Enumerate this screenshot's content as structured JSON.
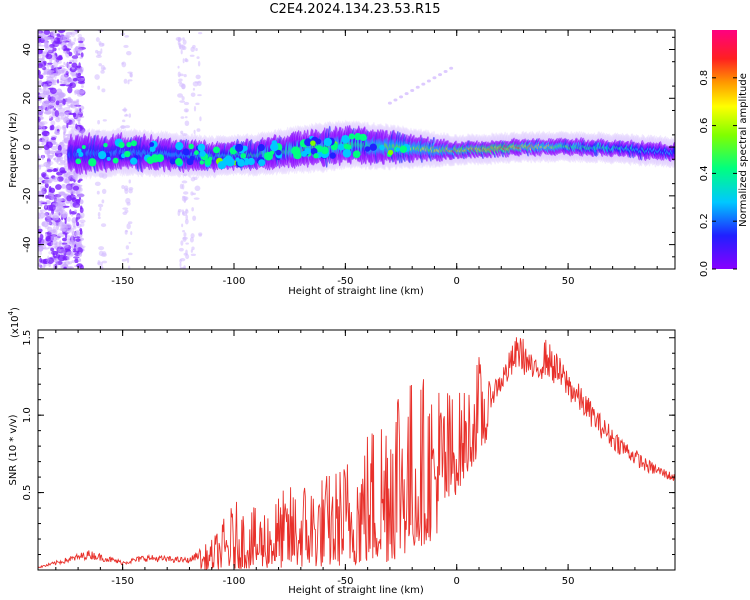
{
  "page": {
    "title": "C2E4.2024.134.23.53.R15"
  },
  "colors": {
    "snr_line": "#e8302a",
    "spectro_low": "#8b00ff",
    "spectro_mid": "#00e5ff",
    "spectro_high": "#ff1e3c",
    "axis": "#000000"
  },
  "chart_data": [
    {
      "type": "heatmap",
      "title": "C2E4.2024.134.23.53.R15",
      "xlabel": "Height of straight line (km)",
      "ylabel": "Frequency (Hz)",
      "xlim": [
        -188,
        98
      ],
      "ylim": [
        -50,
        48
      ],
      "xticks": [
        -150,
        -100,
        -50,
        0,
        50
      ],
      "yticks": [
        40,
        20,
        0,
        -20,
        -40
      ],
      "colorbar": {
        "label": "Normalized spectral amplitude",
        "range": [
          0,
          1
        ],
        "ticks": [
          "0.0",
          "0.2",
          "0.4",
          "0.6",
          "0.8"
        ],
        "colormap": "hsv-like (purple-blue-cyan-green-yellow-orange-red-magenta)"
      },
      "ridge_center_hz": [
        {
          "x": -170,
          "y": -3
        },
        {
          "x": -150,
          "y": -2
        },
        {
          "x": -130,
          "y": -3
        },
        {
          "x": -110,
          "y": -4
        },
        {
          "x": -90,
          "y": -3
        },
        {
          "x": -70,
          "y": -1
        },
        {
          "x": -50,
          "y": 1
        },
        {
          "x": -30,
          "y": 0
        },
        {
          "x": -10,
          "y": -1
        },
        {
          "x": 10,
          "y": -1
        },
        {
          "x": 30,
          "y": 0
        },
        {
          "x": 60,
          "y": 0
        },
        {
          "x": 95,
          "y": -2
        }
      ],
      "ridge_halfwidth_hz": [
        {
          "x": -170,
          "y": 7
        },
        {
          "x": -130,
          "y": 6
        },
        {
          "x": -100,
          "y": 5
        },
        {
          "x": -60,
          "y": 7
        },
        {
          "x": -30,
          "y": 6
        },
        {
          "x": 0,
          "y": 3
        },
        {
          "x": 50,
          "y": 3
        },
        {
          "x": 95,
          "y": 3
        }
      ],
      "ridge_amplitude": [
        {
          "x": -170,
          "y": 0.3
        },
        {
          "x": -120,
          "y": 0.4
        },
        {
          "x": -80,
          "y": 0.5
        },
        {
          "x": -40,
          "y": 0.55
        },
        {
          "x": -10,
          "y": 0.75
        },
        {
          "x": 20,
          "y": 0.95
        },
        {
          "x": 50,
          "y": 0.55
        },
        {
          "x": 95,
          "y": 0.35
        }
      ]
    },
    {
      "type": "line",
      "xlabel": "Height of straight line (km)",
      "ylabel": "SNR (10 * v/v)",
      "multiplier_label": "(x10",
      "multiplier_exp": "4",
      "xlim": [
        -188,
        98
      ],
      "ylim": [
        0,
        1.55
      ],
      "xticks": [
        -150,
        -100,
        -50,
        0,
        50
      ],
      "yticks": [
        "0.5",
        "1.0",
        "1.5"
      ],
      "series": [
        {
          "envelope_upper": [
            {
              "x": -188,
              "y": 0.02
            },
            {
              "x": -165,
              "y": 0.13
            },
            {
              "x": -150,
              "y": 0.06
            },
            {
              "x": -140,
              "y": 0.1
            },
            {
              "x": -120,
              "y": 0.08
            },
            {
              "x": -110,
              "y": 0.2
            },
            {
              "x": -100,
              "y": 0.45
            },
            {
              "x": -90,
              "y": 0.4
            },
            {
              "x": -70,
              "y": 0.6
            },
            {
              "x": -55,
              "y": 0.65
            },
            {
              "x": -45,
              "y": 0.85
            },
            {
              "x": -35,
              "y": 1.05
            },
            {
              "x": -28,
              "y": 1.5
            },
            {
              "x": -20,
              "y": 1.25
            },
            {
              "x": -10,
              "y": 1.3
            },
            {
              "x": 0,
              "y": 1.15
            },
            {
              "x": 5,
              "y": 1.2
            },
            {
              "x": 10,
              "y": 1.4
            },
            {
              "x": 15,
              "y": 1.2
            },
            {
              "x": 20,
              "y": 1.3
            },
            {
              "x": 28,
              "y": 1.55
            },
            {
              "x": 35,
              "y": 1.35
            },
            {
              "x": 40,
              "y": 1.5
            },
            {
              "x": 45,
              "y": 1.4
            },
            {
              "x": 55,
              "y": 1.2
            },
            {
              "x": 65,
              "y": 1.0
            },
            {
              "x": 75,
              "y": 0.85
            },
            {
              "x": 85,
              "y": 0.72
            },
            {
              "x": 98,
              "y": 0.62
            }
          ],
          "envelope_lower": [
            {
              "x": -188,
              "y": 0.0
            },
            {
              "x": -120,
              "y": 0.0
            },
            {
              "x": -60,
              "y": 0.02
            },
            {
              "x": -30,
              "y": 0.05
            },
            {
              "x": -10,
              "y": 0.2
            },
            {
              "x": 0,
              "y": 0.5
            },
            {
              "x": 10,
              "y": 0.75
            },
            {
              "x": 20,
              "y": 0.95
            },
            {
              "x": 35,
              "y": 1.0
            },
            {
              "x": 50,
              "y": 0.85
            },
            {
              "x": 70,
              "y": 0.6
            },
            {
              "x": 85,
              "y": 0.52
            },
            {
              "x": 98,
              "y": 0.5
            }
          ]
        }
      ]
    }
  ]
}
